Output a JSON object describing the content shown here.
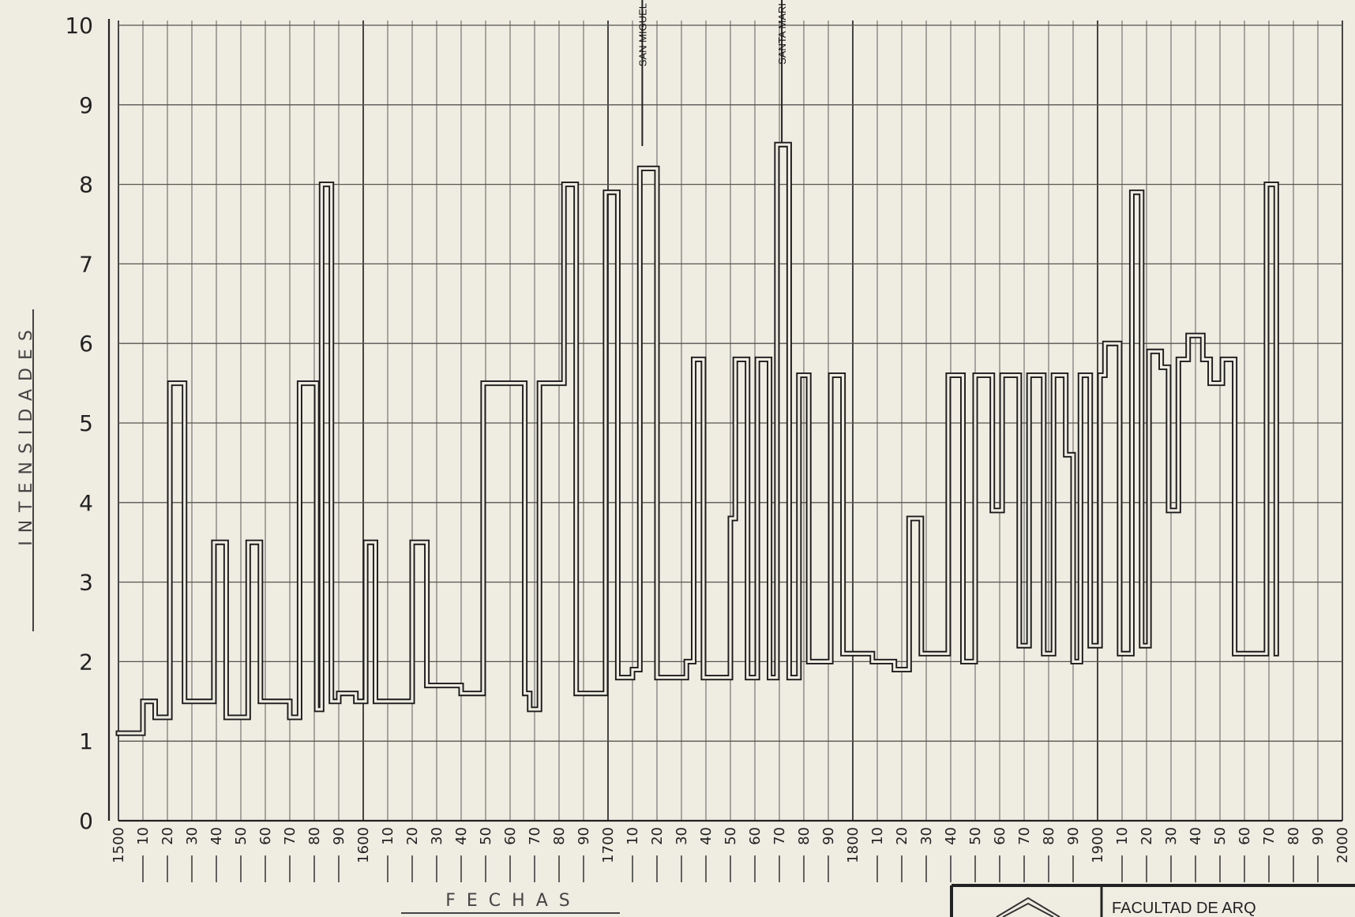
{
  "chart_data": {
    "type": "line",
    "title": "",
    "xlabel": "FECHAS",
    "ylabel": "INTENSIDADES",
    "xlim": [
      1500,
      2000
    ],
    "ylim": [
      0,
      10
    ],
    "grid": true,
    "y_ticks": [
      "0",
      "1",
      "2",
      "3",
      "4",
      "5",
      "6",
      "7",
      "8",
      "9",
      "10"
    ],
    "x_ticks": [
      {
        "x": 1500,
        "label": "1500"
      },
      {
        "x": 1510,
        "label": "10"
      },
      {
        "x": 1520,
        "label": "20"
      },
      {
        "x": 1530,
        "label": "30"
      },
      {
        "x": 1540,
        "label": "40"
      },
      {
        "x": 1550,
        "label": "50"
      },
      {
        "x": 1560,
        "label": "60"
      },
      {
        "x": 1570,
        "label": "70"
      },
      {
        "x": 1580,
        "label": "80"
      },
      {
        "x": 1590,
        "label": "90"
      },
      {
        "x": 1600,
        "label": "1600"
      },
      {
        "x": 1610,
        "label": "10"
      },
      {
        "x": 1620,
        "label": "20"
      },
      {
        "x": 1630,
        "label": "30"
      },
      {
        "x": 1640,
        "label": "40"
      },
      {
        "x": 1650,
        "label": "50"
      },
      {
        "x": 1660,
        "label": "60"
      },
      {
        "x": 1670,
        "label": "70"
      },
      {
        "x": 1680,
        "label": "80"
      },
      {
        "x": 1690,
        "label": "90"
      },
      {
        "x": 1700,
        "label": "1700"
      },
      {
        "x": 1710,
        "label": "10"
      },
      {
        "x": 1720,
        "label": "20"
      },
      {
        "x": 1730,
        "label": "30"
      },
      {
        "x": 1740,
        "label": "40"
      },
      {
        "x": 1750,
        "label": "50"
      },
      {
        "x": 1760,
        "label": "60"
      },
      {
        "x": 1770,
        "label": "70"
      },
      {
        "x": 1780,
        "label": "80"
      },
      {
        "x": 1790,
        "label": "90"
      },
      {
        "x": 1800,
        "label": "1800"
      },
      {
        "x": 1810,
        "label": "10"
      },
      {
        "x": 1820,
        "label": "20"
      },
      {
        "x": 1830,
        "label": "30"
      },
      {
        "x": 1840,
        "label": "40"
      },
      {
        "x": 1850,
        "label": "50"
      },
      {
        "x": 1860,
        "label": "60"
      },
      {
        "x": 1870,
        "label": "70"
      },
      {
        "x": 1880,
        "label": "80"
      },
      {
        "x": 1890,
        "label": "90"
      },
      {
        "x": 1900,
        "label": "1900"
      },
      {
        "x": 1910,
        "label": "10"
      },
      {
        "x": 1920,
        "label": "20"
      },
      {
        "x": 1930,
        "label": "30"
      },
      {
        "x": 1940,
        "label": "40"
      },
      {
        "x": 1950,
        "label": "50"
      },
      {
        "x": 1960,
        "label": "60"
      },
      {
        "x": 1970,
        "label": "70"
      },
      {
        "x": 1980,
        "label": "80"
      },
      {
        "x": 1990,
        "label": "90"
      },
      {
        "x": 2000,
        "label": "2000"
      }
    ],
    "series": [
      {
        "style": "step",
        "points": [
          [
            1500,
            1.1
          ],
          [
            1510,
            1.1
          ],
          [
            1510,
            1.5
          ],
          [
            1515,
            1.5
          ],
          [
            1515,
            1.3
          ],
          [
            1521,
            1.3
          ],
          [
            1521,
            5.5
          ],
          [
            1527,
            5.5
          ],
          [
            1527,
            1.5
          ],
          [
            1539,
            1.5
          ],
          [
            1539,
            3.5
          ],
          [
            1544,
            3.5
          ],
          [
            1544,
            1.3
          ],
          [
            1553,
            1.3
          ],
          [
            1553,
            3.5
          ],
          [
            1558,
            3.5
          ],
          [
            1558,
            1.5
          ],
          [
            1570,
            1.5
          ],
          [
            1570,
            1.3
          ],
          [
            1574,
            1.3
          ],
          [
            1574,
            5.5
          ],
          [
            1581,
            5.5
          ],
          [
            1581,
            1.4
          ],
          [
            1583,
            1.4
          ],
          [
            1583,
            8.0
          ],
          [
            1587,
            8.0
          ],
          [
            1587,
            1.5
          ],
          [
            1590,
            1.5
          ],
          [
            1590,
            1.6
          ],
          [
            1597,
            1.6
          ],
          [
            1597,
            1.5
          ],
          [
            1601,
            1.5
          ],
          [
            1601,
            3.5
          ],
          [
            1605,
            3.5
          ],
          [
            1605,
            1.5
          ],
          [
            1620,
            1.5
          ],
          [
            1620,
            3.5
          ],
          [
            1626,
            3.5
          ],
          [
            1626,
            1.7
          ],
          [
            1640,
            1.7
          ],
          [
            1640,
            1.6
          ],
          [
            1649,
            1.6
          ],
          [
            1649,
            5.5
          ],
          [
            1666,
            5.5
          ],
          [
            1666,
            1.6
          ],
          [
            1668,
            1.6
          ],
          [
            1668,
            1.4
          ],
          [
            1672,
            1.4
          ],
          [
            1672,
            5.5
          ],
          [
            1682,
            5.5
          ],
          [
            1682,
            8.0
          ],
          [
            1687,
            8.0
          ],
          [
            1687,
            1.6
          ],
          [
            1699,
            1.6
          ],
          [
            1699,
            7.9
          ],
          [
            1704,
            7.9
          ],
          [
            1704,
            1.8
          ],
          [
            1710,
            1.8
          ],
          [
            1710,
            1.9
          ],
          [
            1713,
            1.9
          ],
          [
            1713,
            8.2
          ],
          [
            1720,
            8.2
          ],
          [
            1720,
            1.8
          ],
          [
            1732,
            1.8
          ],
          [
            1732,
            2.0
          ],
          [
            1735,
            2.0
          ],
          [
            1735,
            5.8
          ],
          [
            1739,
            5.8
          ],
          [
            1739,
            1.8
          ],
          [
            1750,
            1.8
          ],
          [
            1750,
            3.8
          ],
          [
            1752,
            3.8
          ],
          [
            1752,
            5.8
          ],
          [
            1757,
            5.8
          ],
          [
            1757,
            1.8
          ],
          [
            1761,
            1.8
          ],
          [
            1761,
            5.8
          ],
          [
            1766,
            5.8
          ],
          [
            1766,
            1.8
          ],
          [
            1769,
            1.8
          ],
          [
            1769,
            8.5
          ],
          [
            1774,
            8.5
          ],
          [
            1774,
            1.8
          ],
          [
            1778,
            1.8
          ],
          [
            1778,
            5.6
          ],
          [
            1782,
            5.6
          ],
          [
            1782,
            2.0
          ],
          [
            1791,
            2.0
          ],
          [
            1791,
            5.6
          ],
          [
            1796,
            5.6
          ],
          [
            1796,
            2.1
          ],
          [
            1808,
            2.1
          ],
          [
            1808,
            2.0
          ],
          [
            1817,
            2.0
          ],
          [
            1817,
            1.9
          ],
          [
            1823,
            1.9
          ],
          [
            1823,
            3.8
          ],
          [
            1828,
            3.8
          ],
          [
            1828,
            2.1
          ],
          [
            1839,
            2.1
          ],
          [
            1839,
            5.6
          ],
          [
            1845,
            5.6
          ],
          [
            1845,
            2.0
          ],
          [
            1850,
            2.0
          ],
          [
            1850,
            5.6
          ],
          [
            1857,
            5.6
          ],
          [
            1857,
            3.9
          ],
          [
            1861,
            3.9
          ],
          [
            1861,
            5.6
          ],
          [
            1868,
            5.6
          ],
          [
            1868,
            2.2
          ],
          [
            1872,
            2.2
          ],
          [
            1872,
            5.6
          ],
          [
            1878,
            5.6
          ],
          [
            1878,
            2.1
          ],
          [
            1882,
            2.1
          ],
          [
            1882,
            5.6
          ],
          [
            1887,
            5.6
          ],
          [
            1887,
            4.6
          ],
          [
            1890,
            4.6
          ],
          [
            1890,
            2.0
          ],
          [
            1893,
            2.0
          ],
          [
            1893,
            5.6
          ],
          [
            1897,
            5.6
          ],
          [
            1897,
            2.2
          ],
          [
            1901,
            2.2
          ],
          [
            1901,
            5.6
          ],
          [
            1903,
            5.6
          ],
          [
            1903,
            6.0
          ],
          [
            1909,
            6.0
          ],
          [
            1909,
            2.1
          ],
          [
            1914,
            2.1
          ],
          [
            1914,
            7.9
          ],
          [
            1918,
            7.9
          ],
          [
            1918,
            2.2
          ],
          [
            1921,
            2.2
          ],
          [
            1921,
            5.9
          ],
          [
            1926,
            5.9
          ],
          [
            1926,
            5.7
          ],
          [
            1929,
            5.7
          ],
          [
            1929,
            3.9
          ],
          [
            1933,
            3.9
          ],
          [
            1933,
            5.8
          ],
          [
            1937,
            5.8
          ],
          [
            1937,
            6.1
          ],
          [
            1943,
            6.1
          ],
          [
            1943,
            5.8
          ],
          [
            1946,
            5.8
          ],
          [
            1946,
            5.5
          ],
          [
            1951,
            5.5
          ],
          [
            1951,
            5.8
          ],
          [
            1956,
            5.8
          ],
          [
            1956,
            2.1
          ],
          [
            1969,
            2.1
          ],
          [
            1969,
            8.0
          ],
          [
            1973,
            8.0
          ],
          [
            1973,
            2.1
          ]
        ]
      }
    ],
    "annotations": [
      {
        "x": 1714,
        "text": "SAN MIGUEL"
      },
      {
        "x": 1771,
        "text": "SANTA MARI"
      }
    ]
  },
  "title_block": {
    "text": "FACULTAD DE ARQ"
  }
}
